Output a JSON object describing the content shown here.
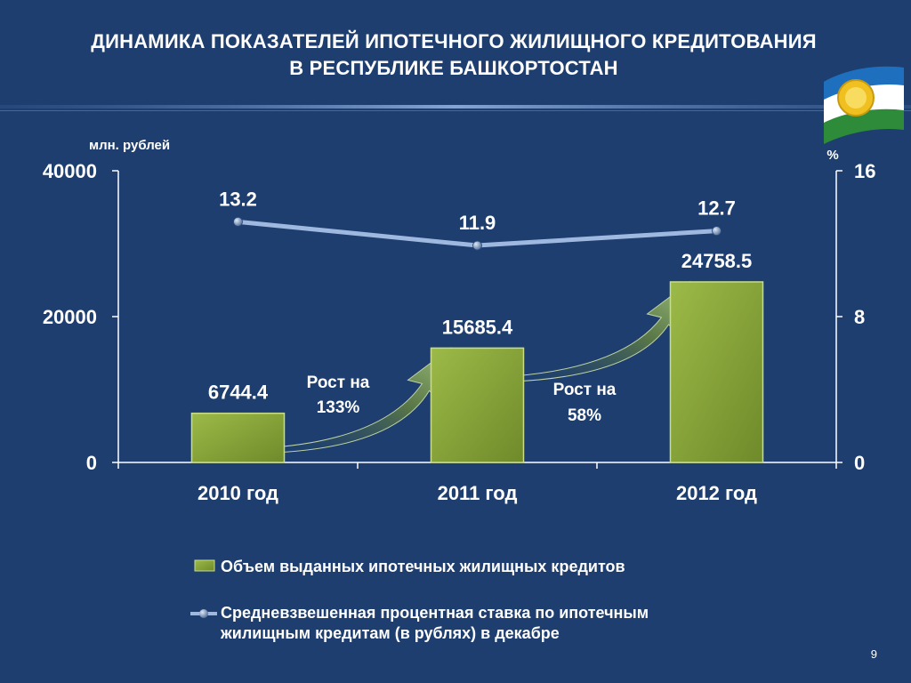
{
  "slide": {
    "title_line1": "ДИНАМИКА ПОКАЗАТЕЛЕЙ ИПОТЕЧНОГО ЖИЛИЩНОГО КРЕДИТОВАНИЯ",
    "title_line2": "В РЕСПУБЛИКЕ БАШКОРТОСТАН",
    "page_number": "9",
    "logo": "bashkortostan-flag-emblem-icon"
  },
  "chart_data": {
    "type": "bar",
    "categories": [
      "2010 год",
      "2011 год",
      "2012 год"
    ],
    "series": [
      {
        "name": "Объем выданных ипотечных жилищных кредитов",
        "type": "bar",
        "axis": "left",
        "values": [
          6744.4,
          15685.4,
          24758.5
        ],
        "labels": [
          "6744.4",
          "15685.4",
          "24758.5"
        ],
        "color": "#8aa63a"
      },
      {
        "name": "Средневзвешенная процентная ставка по  ипотечным жилищным кредитам (в рублях) в декабре",
        "type": "line",
        "axis": "right",
        "values": [
          13.2,
          11.9,
          12.7
        ],
        "labels": [
          "13.2",
          "11.9",
          "12.7"
        ],
        "color": "#9fb8e0"
      }
    ],
    "y_left": {
      "label": "млн. рублей",
      "range": [
        0,
        40000
      ],
      "ticks": [
        "0",
        "20000",
        "40000"
      ],
      "tick_values": [
        0,
        20000,
        40000
      ]
    },
    "y_right": {
      "label": "%",
      "range": [
        0,
        16
      ],
      "ticks": [
        "0",
        "8",
        "16"
      ],
      "tick_values": [
        0,
        8,
        16
      ]
    },
    "annotations": [
      {
        "line1": "Рост на",
        "line2": "133%"
      },
      {
        "line1": "Рост на",
        "line2": "58%"
      }
    ],
    "legend": {
      "placement": "bottom",
      "bar_text": "Объем выданных ипотечных жилищных кредитов",
      "line_text_1": "Средневзвешенная процентная ставка по  ипотечным",
      "line_text_2": "жилищным кредитам (в рублях) в декабре"
    },
    "grid": false
  }
}
